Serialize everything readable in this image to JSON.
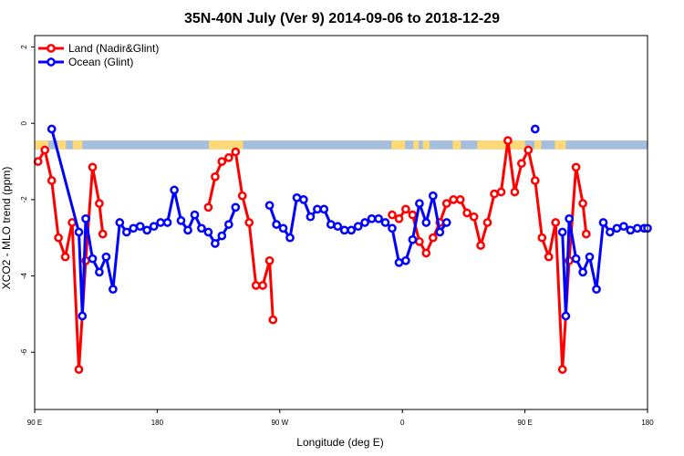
{
  "chart_data": {
    "type": "line",
    "title": "35N-40N July (Ver 9)   2014-09-06 to 2018-12-29",
    "xlabel": "Longitude (deg E)",
    "ylabel": "XCO2 - MLO trend (ppm)",
    "xlim": [
      90,
      540
    ],
    "ylim": [
      -7.5,
      2.3
    ],
    "x_ticks": [
      {
        "value": 90,
        "label": "90 E"
      },
      {
        "value": 180,
        "label": "180"
      },
      {
        "value": 270,
        "label": "90 W"
      },
      {
        "value": 360,
        "label": "0"
      },
      {
        "value": 450,
        "label": "90 E"
      },
      {
        "value": 540,
        "label": "180"
      }
    ],
    "y_ticks": [
      {
        "value": 2,
        "label": "2"
      },
      {
        "value": 0,
        "label": "0"
      },
      {
        "value": -2,
        "label": "-2"
      },
      {
        "value": -4,
        "label": "-4"
      },
      {
        "value": -6,
        "label": "-6"
      }
    ],
    "legend_position": "top-left",
    "grid": false,
    "land_mask_band": {
      "y_top": -0.45,
      "y_bottom": -0.68,
      "land_color": "#FFD878",
      "ocean_color": "#A4BEDC"
    },
    "series": [
      {
        "name": "Land (Nadir&Glint)",
        "color": "#FF0000",
        "segments": [
          [
            [
              92.5,
              -1.0
            ],
            [
              97.5,
              -0.7
            ],
            [
              102.5,
              -1.5
            ],
            [
              107.5,
              -3.0
            ],
            [
              112.5,
              -3.5
            ],
            [
              117.5,
              -2.6
            ],
            [
              122.5,
              -6.45
            ],
            [
              127.5,
              -3.6
            ],
            [
              132.5,
              -1.15
            ],
            [
              137.5,
              -2.1
            ],
            [
              140,
              -2.9
            ]
          ],
          [
            [
              217.5,
              -2.2
            ],
            [
              222.5,
              -1.4
            ],
            [
              227.5,
              -1.0
            ],
            [
              232.5,
              -0.9
            ],
            [
              237.5,
              -0.75
            ],
            [
              242.5,
              -1.9
            ],
            [
              247.5,
              -2.6
            ],
            [
              252.5,
              -4.25
            ],
            [
              257.5,
              -4.25
            ],
            [
              262.5,
              -3.6
            ],
            [
              265,
              -5.15
            ]
          ],
          [
            [
              352.5,
              -2.4
            ],
            [
              357.5,
              -2.5
            ],
            [
              362.5,
              -2.25
            ],
            [
              367.5,
              -2.4
            ],
            [
              372.5,
              -3.1
            ],
            [
              377.5,
              -3.4
            ],
            [
              382.5,
              -3.0
            ],
            [
              387.5,
              -2.6
            ],
            [
              392.5,
              -2.1
            ],
            [
              397.5,
              -2.0
            ],
            [
              402.5,
              -2.0
            ],
            [
              407.5,
              -2.35
            ],
            [
              412.5,
              -2.45
            ],
            [
              417.5,
              -3.2
            ],
            [
              422.5,
              -2.6
            ],
            [
              427.5,
              -1.85
            ],
            [
              432.5,
              -1.8
            ],
            [
              437.5,
              -0.45
            ],
            [
              442.5,
              -1.8
            ],
            [
              447.5,
              -1.05
            ],
            [
              452.5,
              -0.7
            ],
            [
              457.5,
              -1.5
            ],
            [
              462.5,
              -3.0
            ],
            [
              467.5,
              -3.5
            ],
            [
              472.5,
              -2.6
            ],
            [
              477.5,
              -6.45
            ],
            [
              482.5,
              -3.6
            ],
            [
              487.5,
              -1.15
            ],
            [
              492.5,
              -2.1
            ],
            [
              495,
              -2.9
            ]
          ]
        ]
      },
      {
        "name": "Ocean (Glint)",
        "color": "#0000FF",
        "segments": [
          [
            [
              102.5,
              -0.15
            ],
            [
              122.5,
              -2.85
            ],
            [
              125,
              -5.05
            ],
            [
              127.5,
              -2.5
            ],
            [
              132.5,
              -3.55
            ],
            [
              137.5,
              -3.9
            ],
            [
              142.5,
              -3.5
            ],
            [
              147.5,
              -4.35
            ],
            [
              152.5,
              -2.6
            ],
            [
              157.5,
              -2.85
            ],
            [
              162.5,
              -2.75
            ],
            [
              167.5,
              -2.7
            ],
            [
              172.5,
              -2.8
            ],
            [
              177.5,
              -2.7
            ],
            [
              182.5,
              -2.6
            ],
            [
              187.5,
              -2.6
            ],
            [
              192.5,
              -1.75
            ],
            [
              197.5,
              -2.55
            ],
            [
              202.5,
              -2.8
            ],
            [
              207.5,
              -2.4
            ],
            [
              212.5,
              -2.75
            ],
            [
              217.5,
              -2.85
            ],
            [
              222.5,
              -3.15
            ],
            [
              227.5,
              -2.95
            ],
            [
              232.5,
              -2.65
            ],
            [
              237.5,
              -2.2
            ]
          ],
          [
            [
              262.5,
              -2.15
            ],
            [
              267.5,
              -2.65
            ],
            [
              272.5,
              -2.75
            ],
            [
              277.5,
              -3.0
            ],
            [
              282.5,
              -1.95
            ],
            [
              287.5,
              -2.0
            ],
            [
              292.5,
              -2.45
            ],
            [
              297.5,
              -2.25
            ],
            [
              302.5,
              -2.25
            ],
            [
              307.5,
              -2.65
            ],
            [
              312.5,
              -2.7
            ],
            [
              317.5,
              -2.8
            ],
            [
              322.5,
              -2.8
            ],
            [
              327.5,
              -2.7
            ],
            [
              332.5,
              -2.6
            ],
            [
              337.5,
              -2.5
            ],
            [
              342.5,
              -2.5
            ],
            [
              347.5,
              -2.6
            ],
            [
              352.5,
              -2.75
            ],
            [
              357.5,
              -3.65
            ],
            [
              362.5,
              -3.6
            ],
            [
              367.5,
              -3.05
            ],
            [
              372.5,
              -2.1
            ],
            [
              377.5,
              -2.6
            ],
            [
              382.5,
              -1.9
            ],
            [
              387.5,
              -2.85
            ],
            [
              392.5,
              -2.6
            ]
          ],
          [
            [
              457.5,
              -0.15
            ]
          ],
          [
            [
              477.5,
              -2.85
            ],
            [
              480,
              -5.05
            ],
            [
              482.5,
              -2.5
            ],
            [
              487.5,
              -3.55
            ],
            [
              492.5,
              -3.9
            ],
            [
              497.5,
              -3.5
            ],
            [
              502.5,
              -4.35
            ],
            [
              507.5,
              -2.6
            ],
            [
              512.5,
              -2.85
            ],
            [
              517.5,
              -2.75
            ],
            [
              522.5,
              -2.7
            ],
            [
              527.5,
              -2.8
            ],
            [
              532.5,
              -2.75
            ],
            [
              537.5,
              -2.75
            ],
            [
              540,
              -2.75
            ]
          ]
        ]
      }
    ]
  }
}
